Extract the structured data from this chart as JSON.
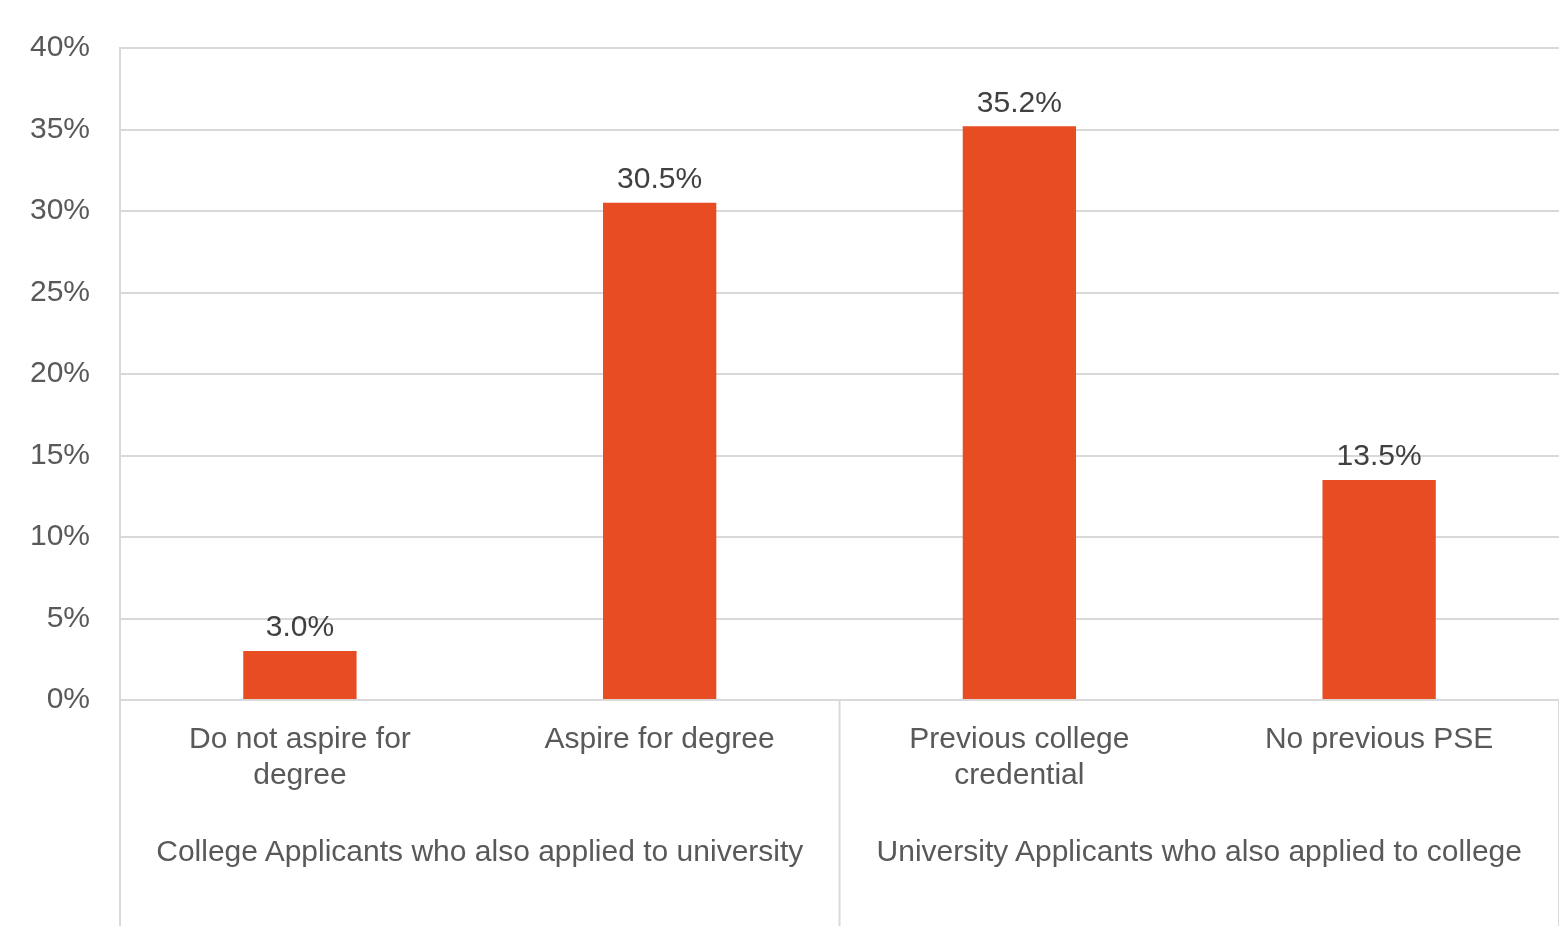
{
  "chart_data": {
    "type": "bar",
    "categories": [
      "Do not aspire for degree",
      "Aspire for degree",
      "Previous college credential",
      "No previous PSE"
    ],
    "values": [
      3.0,
      30.5,
      35.2,
      13.5
    ],
    "value_labels": [
      "3.0%",
      "30.5%",
      "35.2%",
      "13.5%"
    ],
    "color": "#e84c22",
    "ylim": [
      0,
      40
    ],
    "yticks": [
      {
        "value": 0,
        "label": "0%"
      },
      {
        "value": 5,
        "label": "5%"
      },
      {
        "value": 10,
        "label": "10%"
      },
      {
        "value": 15,
        "label": "15%"
      },
      {
        "value": 20,
        "label": "20%"
      },
      {
        "value": 25,
        "label": "25%"
      },
      {
        "value": 30,
        "label": "30%"
      },
      {
        "value": 35,
        "label": "35%"
      },
      {
        "value": 40,
        "label": "40%"
      }
    ],
    "grid": "y",
    "annotations": [
      "College Applicants who also applied to university",
      "University Applicants who also applied to college"
    ]
  }
}
